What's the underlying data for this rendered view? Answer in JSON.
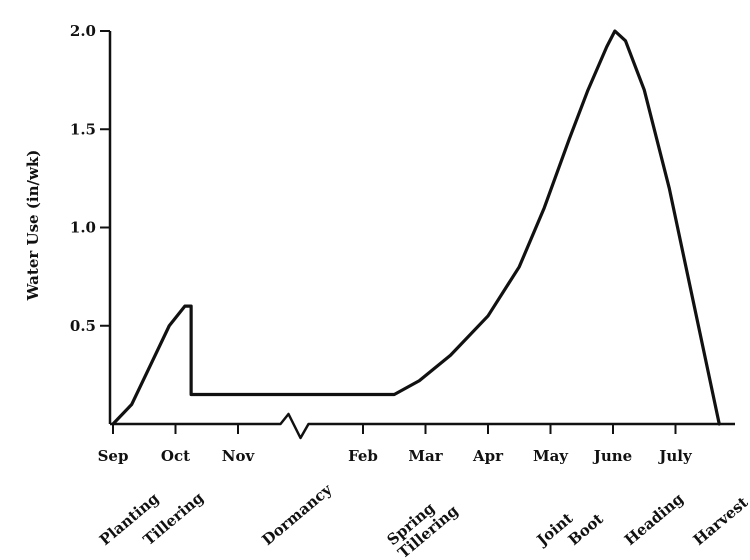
{
  "chart_data": {
    "type": "line",
    "title": "",
    "ylabel": "Water Use (in/wk)",
    "xlabel": "",
    "ylim": [
      0,
      2.0
    ],
    "yticks": [
      {
        "value": 0.5,
        "label": "0.5"
      },
      {
        "value": 1.0,
        "label": "1.0"
      },
      {
        "value": 1.5,
        "label": "1.5"
      },
      {
        "value": 2.0,
        "label": "2.0"
      }
    ],
    "months": [
      {
        "label": "Sep",
        "x": 0
      },
      {
        "label": "Oct",
        "x": 1
      },
      {
        "label": "Nov",
        "x": 2
      },
      {
        "label": "Feb",
        "x": 4
      },
      {
        "label": "Mar",
        "x": 5
      },
      {
        "label": "Apr",
        "x": 6
      },
      {
        "label": "May",
        "x": 7
      },
      {
        "label": "June",
        "x": 8
      },
      {
        "label": "July",
        "x": 9
      }
    ],
    "axis_break": {
      "after": "Nov",
      "before": "Feb"
    },
    "growth_stages": [
      {
        "label": "Planting",
        "x": 0
      },
      {
        "label": "Tillering",
        "x": 0.7
      },
      {
        "label": "Dormancy",
        "x": 2.6
      },
      {
        "label": "Spring\nTillering",
        "x": 4.6
      },
      {
        "label": "Joint",
        "x": 7.0
      },
      {
        "label": "Boot",
        "x": 7.5
      },
      {
        "label": "Heading",
        "x": 8.4
      },
      {
        "label": "Harvest",
        "x": 9.5
      }
    ],
    "series": [
      {
        "points": [
          [
            0.0,
            0.0
          ],
          [
            0.3,
            0.1
          ],
          [
            0.6,
            0.3
          ],
          [
            0.9,
            0.5
          ],
          [
            1.15,
            0.6
          ],
          [
            1.25,
            0.6
          ],
          [
            1.25,
            0.15
          ],
          [
            4.5,
            0.15
          ],
          [
            4.9,
            0.22
          ],
          [
            5.4,
            0.35
          ],
          [
            6.0,
            0.55
          ],
          [
            6.5,
            0.8
          ],
          [
            6.9,
            1.1
          ],
          [
            7.3,
            1.45
          ],
          [
            7.6,
            1.7
          ],
          [
            7.9,
            1.92
          ],
          [
            8.03,
            2.0
          ],
          [
            8.2,
            1.95
          ],
          [
            8.5,
            1.7
          ],
          [
            8.9,
            1.2
          ],
          [
            9.2,
            0.75
          ],
          [
            9.6,
            0.15
          ],
          [
            9.7,
            0.0
          ]
        ]
      }
    ]
  }
}
